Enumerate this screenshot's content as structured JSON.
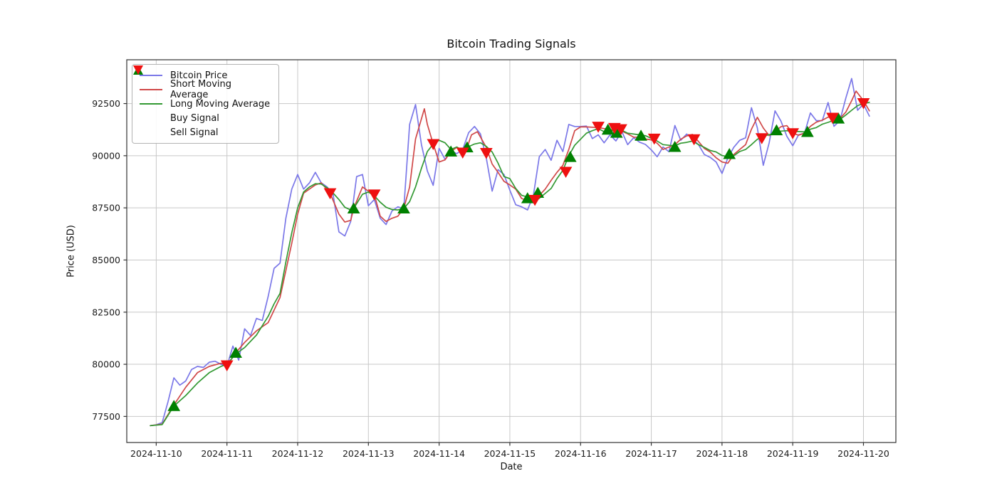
{
  "title": "Bitcoin Trading Signals",
  "axes": {
    "xlabel": "Date",
    "ylabel": "Price (USD)"
  },
  "colors": {
    "price": "#7b78e8",
    "sma": "#d04848",
    "lma": "#339933",
    "buy": "#008000",
    "sell": "#ee1010",
    "grid": "#c8c8c8",
    "spine": "#333333",
    "text": "#1a1a1a"
  },
  "legend": {
    "items": [
      {
        "label": "Bitcoin Price",
        "swatch": "line",
        "color": "#7b78e8"
      },
      {
        "label": "Short Moving Average",
        "swatch": "line",
        "color": "#d04848"
      },
      {
        "label": "Long Moving Average",
        "swatch": "line",
        "color": "#339933"
      },
      {
        "label": "Buy Signal",
        "swatch": "triangle-up",
        "color": "#008000"
      },
      {
        "label": "Sell Signal",
        "swatch": "triangle-down",
        "color": "#ee1010"
      }
    ]
  },
  "chart_data": {
    "type": "line",
    "title": "Bitcoin Trading Signals",
    "xlabel": "Date",
    "ylabel": "Price (USD)",
    "grid": true,
    "legend_position": "upper left",
    "x_unit": "hours since 2024-11-10 00:00",
    "xlim_hours": [
      -10,
      251
    ],
    "ylim": [
      76250,
      94600
    ],
    "x_tick_hours": [
      0,
      24,
      48,
      72,
      96,
      120,
      144,
      168,
      192,
      216,
      240
    ],
    "x_tick_labels": [
      "2024-11-10",
      "2024-11-11",
      "2024-11-12",
      "2024-11-13",
      "2024-11-14",
      "2024-11-15",
      "2024-11-16",
      "2024-11-17",
      "2024-11-18",
      "2024-11-19",
      "2024-11-20"
    ],
    "y_ticks": [
      77500,
      80000,
      82500,
      85000,
      87500,
      90000,
      92500
    ],
    "series": [
      {
        "name": "Bitcoin Price",
        "style": "line",
        "color": "#7b78e8",
        "start_hour": -2,
        "step_hours": 2,
        "values": [
          77060,
          77100,
          77200,
          78200,
          79350,
          79000,
          79200,
          79750,
          79900,
          79850,
          80100,
          80150,
          80000,
          79900,
          80870,
          80200,
          81700,
          81380,
          82200,
          82100,
          83260,
          84600,
          84850,
          87000,
          88400,
          89100,
          88400,
          88700,
          89200,
          88700,
          88500,
          88150,
          86350,
          86150,
          86850,
          89000,
          89100,
          87600,
          87900,
          87000,
          86700,
          87350,
          87550,
          87450,
          91500,
          92450,
          90530,
          89270,
          88580,
          90350,
          89830,
          90220,
          90100,
          90300,
          91100,
          91400,
          91050,
          89900,
          88300,
          89330,
          89100,
          88350,
          87650,
          87550,
          87400,
          88100,
          89950,
          90300,
          89780,
          90740,
          90200,
          91500,
          91400,
          91400,
          91420,
          90820,
          91000,
          90620,
          91000,
          90710,
          91160,
          90530,
          90860,
          90650,
          90540,
          90280,
          89950,
          90420,
          90190,
          91450,
          90740,
          91040,
          90800,
          90530,
          90060,
          89920,
          89700,
          89150,
          89900,
          90400,
          90740,
          90860,
          92300,
          91330,
          89540,
          90620,
          92150,
          91660,
          90930,
          90480,
          91000,
          91080,
          92050,
          91680,
          91680,
          92550,
          91410,
          91680,
          92760,
          93700,
          92180,
          92470,
          91900
        ]
      },
      {
        "name": "Short Moving Average",
        "style": "line",
        "color": "#d04848",
        "points": [
          [
            -2,
            77060
          ],
          [
            2,
            77130
          ],
          [
            6,
            78050
          ],
          [
            10,
            78900
          ],
          [
            14,
            79600
          ],
          [
            18,
            79900
          ],
          [
            22,
            80050
          ],
          [
            24,
            79950
          ],
          [
            27,
            80550
          ],
          [
            30,
            81050
          ],
          [
            34,
            81600
          ],
          [
            38,
            82000
          ],
          [
            42,
            83200
          ],
          [
            46,
            85800
          ],
          [
            48,
            87200
          ],
          [
            50,
            88200
          ],
          [
            54,
            88600
          ],
          [
            56,
            88700
          ],
          [
            59,
            88200
          ],
          [
            62,
            87200
          ],
          [
            64,
            86820
          ],
          [
            66,
            86900
          ],
          [
            67,
            87470
          ],
          [
            70,
            88500
          ],
          [
            72,
            88300
          ],
          [
            74,
            88140
          ],
          [
            76,
            87100
          ],
          [
            78,
            86850
          ],
          [
            80,
            87000
          ],
          [
            82,
            87100
          ],
          [
            84,
            87470
          ],
          [
            86,
            88500
          ],
          [
            88,
            90800
          ],
          [
            91,
            92250
          ],
          [
            92,
            91500
          ],
          [
            94,
            90560
          ],
          [
            96,
            89700
          ],
          [
            98,
            89800
          ],
          [
            100,
            90200
          ],
          [
            102,
            90400
          ],
          [
            104,
            90150
          ],
          [
            105.5,
            90400
          ],
          [
            107,
            91000
          ],
          [
            109,
            91150
          ],
          [
            112,
            90400
          ],
          [
            114,
            89600
          ],
          [
            116,
            89200
          ],
          [
            118,
            88770
          ],
          [
            120,
            88600
          ],
          [
            122,
            88400
          ],
          [
            124,
            87950
          ],
          [
            126,
            87850
          ],
          [
            128,
            87810
          ],
          [
            129.5,
            88220
          ],
          [
            130,
            88100
          ],
          [
            132,
            88400
          ],
          [
            134,
            88820
          ],
          [
            136,
            89200
          ],
          [
            138,
            89540
          ],
          [
            140,
            90300
          ],
          [
            142,
            91200
          ],
          [
            144,
            91380
          ],
          [
            146,
            91380
          ],
          [
            150,
            91350
          ],
          [
            154,
            91250
          ],
          [
            158,
            91180
          ],
          [
            160,
            91050
          ],
          [
            162,
            90890
          ],
          [
            164,
            90890
          ],
          [
            166,
            90800
          ],
          [
            168,
            90760
          ],
          [
            170,
            90600
          ],
          [
            172,
            90300
          ],
          [
            174,
            90420
          ],
          [
            176,
            90530
          ],
          [
            178,
            90790
          ],
          [
            180,
            90950
          ],
          [
            182,
            91020
          ],
          [
            184,
            90680
          ],
          [
            186,
            90350
          ],
          [
            188,
            90180
          ],
          [
            190,
            89900
          ],
          [
            192,
            89700
          ],
          [
            194,
            89640
          ],
          [
            196,
            90060
          ],
          [
            198,
            90300
          ],
          [
            200,
            90530
          ],
          [
            202,
            91270
          ],
          [
            204,
            91840
          ],
          [
            206,
            91330
          ],
          [
            208,
            90960
          ],
          [
            210,
            91160
          ],
          [
            212,
            91390
          ],
          [
            214,
            91440
          ],
          [
            216,
            91080
          ],
          [
            218,
            90980
          ],
          [
            220,
            91080
          ],
          [
            222,
            91410
          ],
          [
            224,
            91610
          ],
          [
            226,
            91700
          ],
          [
            228,
            91850
          ],
          [
            230,
            91800
          ],
          [
            232,
            91780
          ],
          [
            234,
            92090
          ],
          [
            236,
            92640
          ],
          [
            237.5,
            93100
          ],
          [
            240,
            92640
          ],
          [
            242,
            92150
          ]
        ]
      },
      {
        "name": "Long Moving Average",
        "style": "line",
        "color": "#339933",
        "points": [
          [
            -2,
            77060
          ],
          [
            2,
            77110
          ],
          [
            6,
            78000
          ],
          [
            10,
            78500
          ],
          [
            14,
            79100
          ],
          [
            18,
            79600
          ],
          [
            22,
            79900
          ],
          [
            24,
            80000
          ],
          [
            27,
            80500
          ],
          [
            30,
            80800
          ],
          [
            34,
            81400
          ],
          [
            38,
            82300
          ],
          [
            40,
            82900
          ],
          [
            42,
            83400
          ],
          [
            44,
            84900
          ],
          [
            46,
            86300
          ],
          [
            48,
            87500
          ],
          [
            50,
            88260
          ],
          [
            52,
            88500
          ],
          [
            54,
            88660
          ],
          [
            56,
            88640
          ],
          [
            59,
            88370
          ],
          [
            62,
            87900
          ],
          [
            64,
            87530
          ],
          [
            66,
            87400
          ],
          [
            67,
            87470
          ],
          [
            70,
            88150
          ],
          [
            72,
            88260
          ],
          [
            74,
            88080
          ],
          [
            76,
            87770
          ],
          [
            78,
            87530
          ],
          [
            80,
            87420
          ],
          [
            82,
            87400
          ],
          [
            84,
            87470
          ],
          [
            86,
            87800
          ],
          [
            88,
            88500
          ],
          [
            90,
            89400
          ],
          [
            92,
            90200
          ],
          [
            94,
            90560
          ],
          [
            96,
            90740
          ],
          [
            98,
            90620
          ],
          [
            100,
            90300
          ],
          [
            102,
            90420
          ],
          [
            104,
            90250
          ],
          [
            105.5,
            90400
          ],
          [
            108,
            90560
          ],
          [
            110,
            90620
          ],
          [
            112,
            90450
          ],
          [
            114,
            90180
          ],
          [
            116,
            89640
          ],
          [
            118,
            89000
          ],
          [
            120,
            88900
          ],
          [
            122,
            88430
          ],
          [
            124,
            88100
          ],
          [
            126,
            88020
          ],
          [
            128,
            87880
          ],
          [
            129.5,
            87900
          ],
          [
            132,
            88190
          ],
          [
            134,
            88430
          ],
          [
            136,
            88900
          ],
          [
            138,
            89300
          ],
          [
            140,
            90000
          ],
          [
            142,
            90500
          ],
          [
            144,
            90790
          ],
          [
            146,
            91080
          ],
          [
            148,
            91200
          ],
          [
            150,
            91300
          ],
          [
            152,
            91150
          ],
          [
            154,
            91260
          ],
          [
            156,
            91120
          ],
          [
            158,
            91220
          ],
          [
            160,
            91080
          ],
          [
            162,
            91040
          ],
          [
            164,
            91000
          ],
          [
            166,
            90960
          ],
          [
            168,
            90830
          ],
          [
            170,
            90700
          ],
          [
            172,
            90530
          ],
          [
            174,
            90500
          ],
          [
            176,
            90480
          ],
          [
            178,
            90600
          ],
          [
            180,
            90640
          ],
          [
            182,
            90700
          ],
          [
            184,
            90530
          ],
          [
            186,
            90400
          ],
          [
            188,
            90250
          ],
          [
            190,
            90180
          ],
          [
            192,
            90010
          ],
          [
            194,
            89950
          ],
          [
            196,
            90000
          ],
          [
            198,
            90200
          ],
          [
            200,
            90300
          ],
          [
            202,
            90530
          ],
          [
            204,
            90790
          ],
          [
            206,
            90930
          ],
          [
            208,
            91010
          ],
          [
            210,
            91080
          ],
          [
            212,
            91180
          ],
          [
            214,
            91200
          ],
          [
            216,
            91160
          ],
          [
            218,
            91160
          ],
          [
            220,
            91140
          ],
          [
            222,
            91270
          ],
          [
            224,
            91350
          ],
          [
            226,
            91510
          ],
          [
            228,
            91600
          ],
          [
            230,
            91700
          ],
          [
            232,
            91740
          ],
          [
            234,
            91950
          ],
          [
            236,
            92180
          ],
          [
            238,
            92400
          ],
          [
            240,
            92500
          ],
          [
            242,
            92560
          ]
        ]
      }
    ],
    "signals": {
      "buy": {
        "label": "Buy Signal",
        "marker": "triangle-up",
        "color": "#008000",
        "points": [
          [
            6,
            78000
          ],
          [
            27,
            80550
          ],
          [
            67,
            87470
          ],
          [
            84,
            87470
          ],
          [
            100,
            90200
          ],
          [
            105.5,
            90400
          ],
          [
            126,
            87960
          ],
          [
            129.5,
            88220
          ],
          [
            140.5,
            89940
          ],
          [
            153.3,
            91250
          ],
          [
            156.2,
            91100
          ],
          [
            164.5,
            90960
          ],
          [
            176,
            90420
          ],
          [
            194.5,
            90080
          ],
          [
            210.5,
            91220
          ],
          [
            221,
            91140
          ],
          [
            231.5,
            91780
          ]
        ]
      },
      "sell": {
        "label": "Sell Signal",
        "marker": "triangle-down",
        "color": "#ee1010",
        "points": [
          [
            24,
            79950
          ],
          [
            59,
            88200
          ],
          [
            74,
            88140
          ],
          [
            94,
            90560
          ],
          [
            104,
            90150
          ],
          [
            112,
            90130
          ],
          [
            128.5,
            87880
          ],
          [
            139,
            89230
          ],
          [
            150,
            91390
          ],
          [
            155.5,
            91330
          ],
          [
            157.7,
            91270
          ],
          [
            169,
            90820
          ],
          [
            182.5,
            90790
          ],
          [
            205.5,
            90840
          ],
          [
            216,
            91080
          ],
          [
            229.5,
            91820
          ],
          [
            240,
            92520
          ]
        ]
      }
    }
  }
}
